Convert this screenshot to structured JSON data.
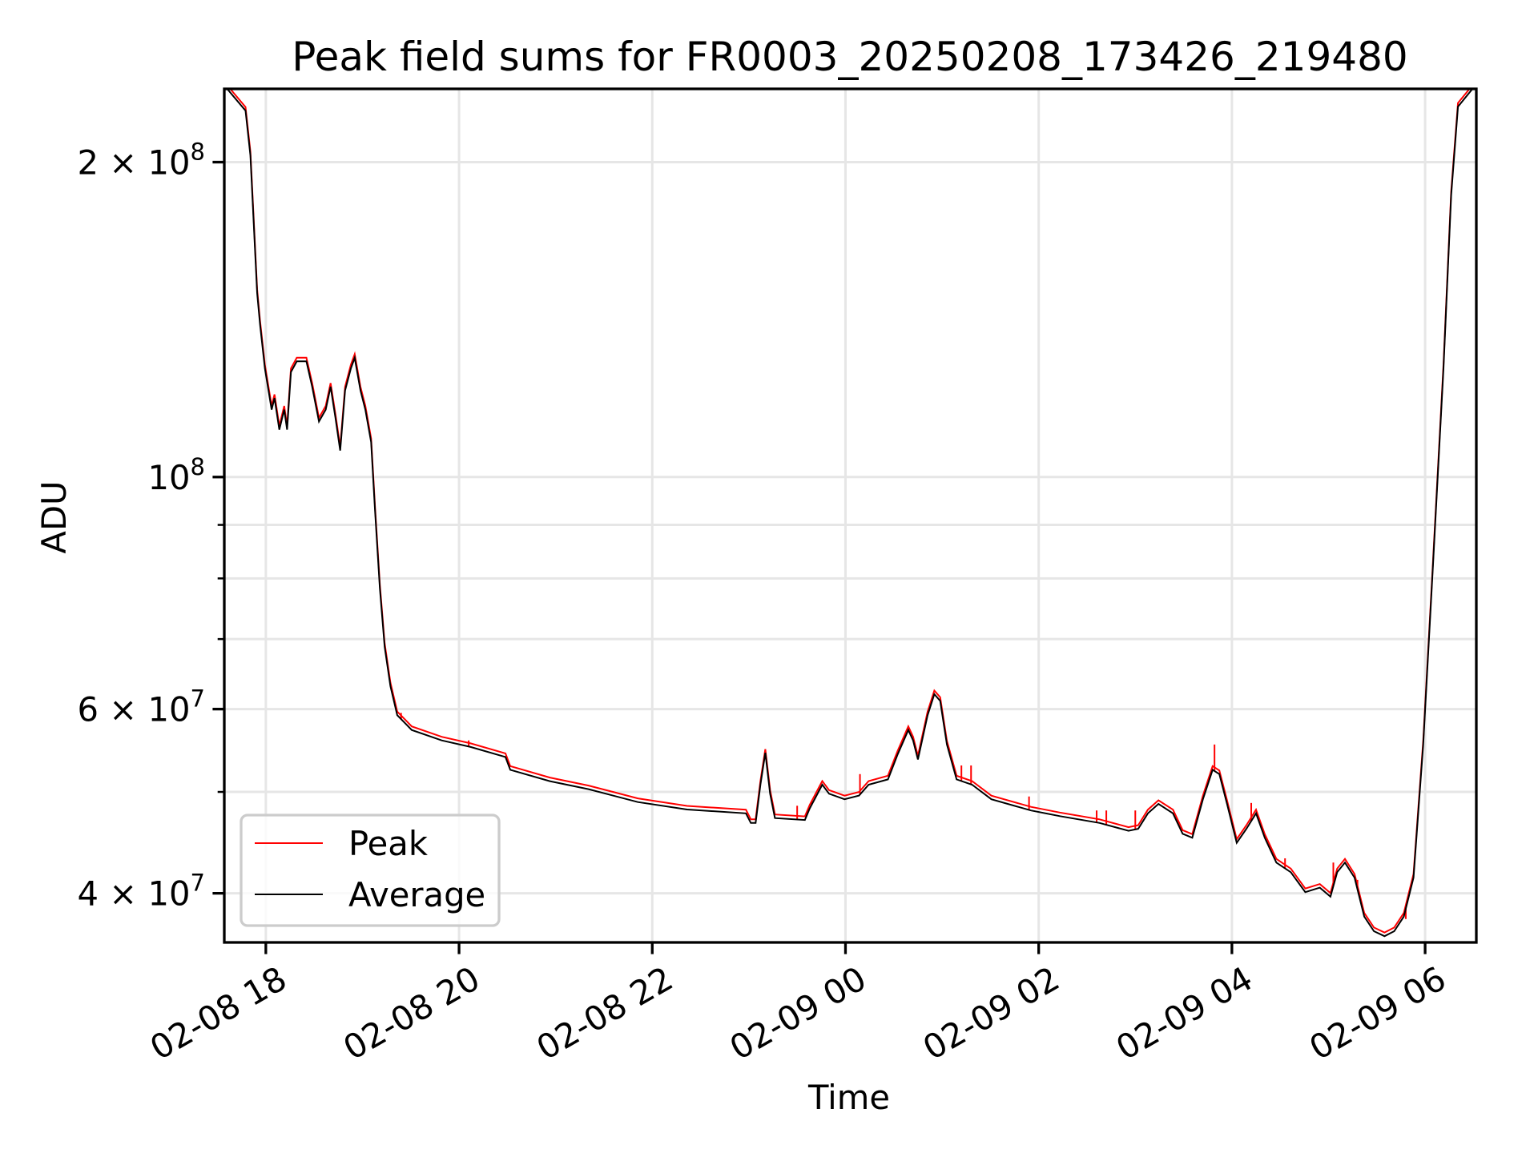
{
  "chart_data": {
    "type": "line",
    "title": "Peak field sums for FR0003_20250208_173426_219480",
    "xlabel": "Time",
    "ylabel": "ADU",
    "x_units": "hours since 02-08 00:00",
    "xlim": [
      17.57,
      30.53
    ],
    "ylim": [
      35900000,
      235000000
    ],
    "yscale": "log",
    "grid": true,
    "legend_position": "lower-left",
    "x_ticks": [
      {
        "value": 18,
        "label": "02-08 18"
      },
      {
        "value": 20,
        "label": "02-08 20"
      },
      {
        "value": 22,
        "label": "02-08 22"
      },
      {
        "value": 24,
        "label": "02-09 00"
      },
      {
        "value": 26,
        "label": "02-09 02"
      },
      {
        "value": 28,
        "label": "02-09 04"
      },
      {
        "value": 30,
        "label": "02-09 06"
      }
    ],
    "y_ticks": [
      {
        "value": 200000000,
        "mant": "2",
        "exp": "8"
      },
      {
        "value": 100000000,
        "mant": "",
        "exp": "8"
      },
      {
        "value": 60000000,
        "mant": "6",
        "exp": "7"
      },
      {
        "value": 40000000,
        "mant": "4",
        "exp": "7"
      }
    ],
    "y_minor_ticks": [
      50000000,
      70000000,
      80000000,
      90000000
    ],
    "series": [
      {
        "name": "Peak",
        "color": "#ff0000",
        "spikes": [
          [
            19.4,
            5.95
          ],
          [
            20.1,
            5.6
          ],
          [
            23.5,
            4.85
          ],
          [
            23.65,
            4.9
          ],
          [
            24.15,
            5.2
          ],
          [
            25.2,
            5.3
          ],
          [
            25.3,
            5.3
          ],
          [
            25.9,
            4.95
          ],
          [
            26.6,
            4.8
          ],
          [
            26.7,
            4.8
          ],
          [
            27.0,
            4.8
          ],
          [
            27.82,
            5.55
          ],
          [
            28.2,
            4.88
          ],
          [
            28.55,
            4.32
          ],
          [
            29.05,
            4.28
          ],
          [
            29.3,
            4.12
          ],
          [
            29.8,
            3.78
          ]
        ]
      },
      {
        "name": "Average",
        "color": "#000000"
      }
    ],
    "value_scale": 10000000,
    "average_points": [
      [
        17.6,
        23.5
      ],
      [
        17.79,
        22.4
      ],
      [
        17.84,
        20.3
      ],
      [
        17.91,
        15.0
      ],
      [
        17.94,
        14.0
      ],
      [
        17.99,
        12.7
      ],
      [
        18.06,
        11.6
      ],
      [
        18.09,
        11.9
      ],
      [
        18.14,
        11.1
      ],
      [
        18.19,
        11.6
      ],
      [
        18.22,
        11.1
      ],
      [
        18.26,
        12.6
      ],
      [
        18.32,
        12.9
      ],
      [
        18.42,
        12.9
      ],
      [
        18.48,
        12.2
      ],
      [
        18.55,
        11.3
      ],
      [
        18.62,
        11.6
      ],
      [
        18.67,
        12.2
      ],
      [
        18.72,
        11.4
      ],
      [
        18.77,
        10.6
      ],
      [
        18.82,
        12.1
      ],
      [
        18.88,
        12.7
      ],
      [
        18.92,
        13.0
      ],
      [
        18.98,
        12.1
      ],
      [
        19.03,
        11.6
      ],
      [
        19.09,
        10.8
      ],
      [
        19.13,
        9.31
      ],
      [
        19.18,
        7.83
      ],
      [
        19.23,
        6.88
      ],
      [
        19.29,
        6.31
      ],
      [
        19.36,
        5.92
      ],
      [
        19.51,
        5.73
      ],
      [
        19.82,
        5.6
      ],
      [
        20.12,
        5.52
      ],
      [
        20.48,
        5.4
      ],
      [
        20.53,
        5.25
      ],
      [
        20.94,
        5.12
      ],
      [
        21.34,
        5.03
      ],
      [
        21.85,
        4.89
      ],
      [
        22.36,
        4.81
      ],
      [
        22.97,
        4.77
      ],
      [
        23.02,
        4.67
      ],
      [
        23.07,
        4.67
      ],
      [
        23.12,
        5.08
      ],
      [
        23.17,
        5.45
      ],
      [
        23.22,
        4.98
      ],
      [
        23.27,
        4.72
      ],
      [
        23.58,
        4.7
      ],
      [
        23.63,
        4.82
      ],
      [
        23.76,
        5.08
      ],
      [
        23.83,
        4.98
      ],
      [
        23.99,
        4.92
      ],
      [
        24.14,
        4.96
      ],
      [
        24.24,
        5.08
      ],
      [
        24.44,
        5.14
      ],
      [
        24.54,
        5.43
      ],
      [
        24.65,
        5.73
      ],
      [
        24.7,
        5.6
      ],
      [
        24.75,
        5.37
      ],
      [
        24.85,
        5.92
      ],
      [
        24.92,
        6.2
      ],
      [
        24.98,
        6.11
      ],
      [
        25.05,
        5.55
      ],
      [
        25.15,
        5.14
      ],
      [
        25.31,
        5.08
      ],
      [
        25.51,
        4.92
      ],
      [
        25.92,
        4.8
      ],
      [
        26.22,
        4.74
      ],
      [
        26.63,
        4.67
      ],
      [
        26.93,
        4.59
      ],
      [
        27.03,
        4.61
      ],
      [
        27.13,
        4.77
      ],
      [
        27.24,
        4.87
      ],
      [
        27.39,
        4.77
      ],
      [
        27.49,
        4.56
      ],
      [
        27.59,
        4.52
      ],
      [
        27.7,
        4.92
      ],
      [
        27.8,
        5.25
      ],
      [
        27.87,
        5.2
      ],
      [
        27.95,
        4.87
      ],
      [
        28.05,
        4.47
      ],
      [
        28.15,
        4.61
      ],
      [
        28.25,
        4.77
      ],
      [
        28.34,
        4.52
      ],
      [
        28.46,
        4.28
      ],
      [
        28.61,
        4.19
      ],
      [
        28.76,
        4.01
      ],
      [
        28.91,
        4.05
      ],
      [
        29.02,
        3.97
      ],
      [
        29.09,
        4.19
      ],
      [
        29.17,
        4.28
      ],
      [
        29.27,
        4.14
      ],
      [
        29.37,
        3.8
      ],
      [
        29.47,
        3.68
      ],
      [
        29.58,
        3.64
      ],
      [
        29.68,
        3.68
      ],
      [
        29.78,
        3.8
      ],
      [
        29.88,
        4.14
      ],
      [
        29.98,
        5.55
      ],
      [
        30.08,
        8.18
      ],
      [
        30.19,
        12.7
      ],
      [
        30.27,
        18.6
      ],
      [
        30.34,
        22.6
      ],
      [
        30.49,
        23.5
      ]
    ]
  }
}
